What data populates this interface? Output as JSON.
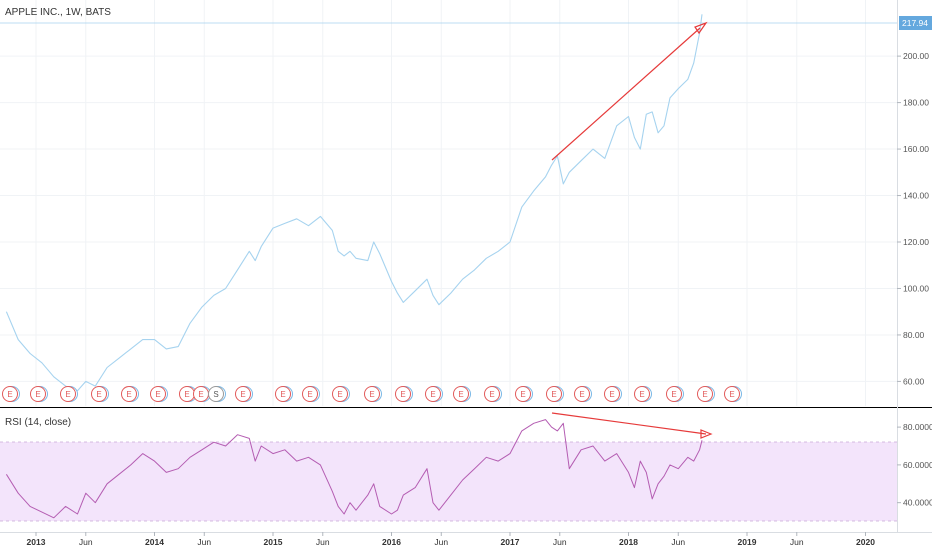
{
  "main_title": "APPLE INC., 1W, BATS",
  "price_badge": "217.94",
  "rsi_title": "RSI (14, close)",
  "colors": {
    "price_line": "#a6d3ef",
    "rsi_line": "#b45db2",
    "rsi_band": "#f3e4fb",
    "arrow": "#e63a3a",
    "badge": "#64a8de",
    "grid": "#f0f3f6",
    "event_red": "#e25a5a",
    "event_blue": "#7ab8e6"
  },
  "event_markers": [
    "E",
    "E",
    "E",
    "E",
    "E",
    "E",
    "E",
    "E",
    "S",
    "E",
    "E",
    "E",
    "E",
    "E",
    "E",
    "E",
    "E",
    "E",
    "E",
    "E",
    "E",
    "E",
    "E",
    "E",
    "E",
    "E",
    "E"
  ],
  "chart_data": [
    {
      "type": "line",
      "name": "price",
      "title": "APPLE INC., 1W, BATS",
      "y_ticks": [
        "60.00",
        "80.00",
        "100.00",
        "120.00",
        "140.00",
        "160.00",
        "180.00",
        "200.00"
      ],
      "ylim": [
        52,
        222
      ],
      "x_ticks": [
        "2013",
        "Jun",
        "2014",
        "Jun",
        "2015",
        "Jun",
        "2016",
        "Jun",
        "2017",
        "Jun",
        "2018",
        "Jun",
        "2019",
        "Jun",
        "2020"
      ],
      "x_ticks_bold": [
        "2013",
        "2014",
        "2015",
        "2016",
        "2017",
        "2018",
        "2019",
        "2020"
      ],
      "x_tick_dates": [
        2013.0,
        2013.42,
        2014.0,
        2014.42,
        2015.0,
        2015.42,
        2016.0,
        2016.42,
        2017.0,
        2017.42,
        2018.0,
        2018.42,
        2019.0,
        2019.42,
        2020.0
      ],
      "x": [
        2012.75,
        2012.85,
        2012.95,
        2013.05,
        2013.15,
        2013.25,
        2013.35,
        2013.42,
        2013.5,
        2013.6,
        2013.7,
        2013.8,
        2013.9,
        2014.0,
        2014.1,
        2014.2,
        2014.3,
        2014.4,
        2014.5,
        2014.6,
        2014.7,
        2014.8,
        2014.85,
        2014.9,
        2015.0,
        2015.1,
        2015.2,
        2015.3,
        2015.4,
        2015.5,
        2015.55,
        2015.6,
        2015.65,
        2015.7,
        2015.8,
        2015.85,
        2015.9,
        2016.0,
        2016.05,
        2016.1,
        2016.2,
        2016.3,
        2016.35,
        2016.4,
        2016.5,
        2016.6,
        2016.7,
        2016.8,
        2016.9,
        2017.0,
        2017.1,
        2017.2,
        2017.3,
        2017.35,
        2017.4,
        2017.45,
        2017.5,
        2017.6,
        2017.7,
        2017.8,
        2017.9,
        2018.0,
        2018.05,
        2018.1,
        2018.15,
        2018.2,
        2018.25,
        2018.3,
        2018.35,
        2018.42,
        2018.5,
        2018.55,
        2018.6,
        2018.62
      ],
      "values": [
        90,
        78,
        72,
        68,
        62,
        58,
        56,
        60,
        58,
        66,
        70,
        74,
        78,
        78,
        74,
        75,
        85,
        92,
        97,
        100,
        108,
        116,
        112,
        118,
        126,
        128,
        130,
        127,
        131,
        125,
        116,
        114,
        116,
        113,
        112,
        120,
        115,
        103,
        98,
        94,
        99,
        104,
        97,
        93,
        98,
        104,
        108,
        113,
        116,
        120,
        135,
        142,
        148,
        153,
        157,
        145,
        150,
        155,
        160,
        156,
        170,
        174,
        165,
        160,
        175,
        176,
        167,
        170,
        182,
        186,
        190,
        197,
        210,
        218
      ]
    },
    {
      "type": "line",
      "name": "rsi",
      "title": "RSI (14, close)",
      "y_ticks": [
        "40.0000",
        "60.0000",
        "80.0000"
      ],
      "ylim": [
        25,
        88
      ],
      "band": [
        30,
        70
      ],
      "x": [
        2012.75,
        2012.85,
        2012.95,
        2013.05,
        2013.15,
        2013.25,
        2013.35,
        2013.42,
        2013.5,
        2013.6,
        2013.7,
        2013.8,
        2013.9,
        2014.0,
        2014.1,
        2014.2,
        2014.3,
        2014.4,
        2014.5,
        2014.6,
        2014.7,
        2014.8,
        2014.85,
        2014.9,
        2015.0,
        2015.1,
        2015.2,
        2015.3,
        2015.4,
        2015.5,
        2015.55,
        2015.6,
        2015.65,
        2015.7,
        2015.8,
        2015.85,
        2015.9,
        2016.0,
        2016.05,
        2016.1,
        2016.2,
        2016.3,
        2016.35,
        2016.4,
        2016.5,
        2016.6,
        2016.7,
        2016.8,
        2016.9,
        2017.0,
        2017.1,
        2017.2,
        2017.3,
        2017.35,
        2017.4,
        2017.45,
        2017.5,
        2017.6,
        2017.7,
        2017.8,
        2017.9,
        2018.0,
        2018.05,
        2018.1,
        2018.15,
        2018.2,
        2018.25,
        2018.3,
        2018.35,
        2018.42,
        2018.5,
        2018.55,
        2018.6,
        2018.62
      ],
      "values": [
        55,
        45,
        38,
        35,
        32,
        38,
        34,
        45,
        40,
        50,
        55,
        60,
        66,
        62,
        56,
        58,
        64,
        68,
        72,
        70,
        76,
        74,
        62,
        70,
        66,
        68,
        62,
        64,
        60,
        46,
        38,
        34,
        40,
        36,
        44,
        50,
        38,
        34,
        36,
        44,
        48,
        58,
        40,
        36,
        44,
        52,
        58,
        64,
        62,
        66,
        78,
        82,
        84,
        80,
        78,
        82,
        58,
        68,
        70,
        62,
        66,
        56,
        48,
        62,
        56,
        42,
        50,
        54,
        60,
        58,
        64,
        62,
        68,
        73
      ]
    }
  ]
}
